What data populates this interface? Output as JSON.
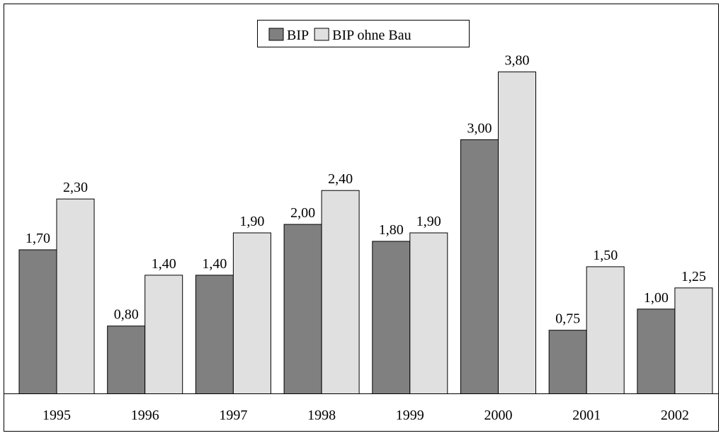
{
  "chart_data": {
    "type": "bar",
    "categories": [
      "1995",
      "1996",
      "1997",
      "1998",
      "1999",
      "2000",
      "2001",
      "2002"
    ],
    "series": [
      {
        "name": "BIP",
        "color": "#808080",
        "values": [
          1.7,
          0.8,
          1.4,
          2.0,
          1.8,
          3.0,
          0.75,
          1.0
        ],
        "value_labels": [
          "1,70",
          "0,80",
          "1,40",
          "2,00",
          "1,80",
          "3,00",
          "0,75",
          "1,00"
        ]
      },
      {
        "name": "BIP ohne Bau",
        "color": "#e0e0e0",
        "values": [
          2.3,
          1.4,
          1.9,
          2.4,
          1.9,
          3.8,
          1.5,
          1.25
        ],
        "value_labels": [
          "2,30",
          "1,40",
          "1,90",
          "2,40",
          "1,90",
          "3,80",
          "1,50",
          "1,25"
        ]
      }
    ],
    "legend": "top"
  }
}
